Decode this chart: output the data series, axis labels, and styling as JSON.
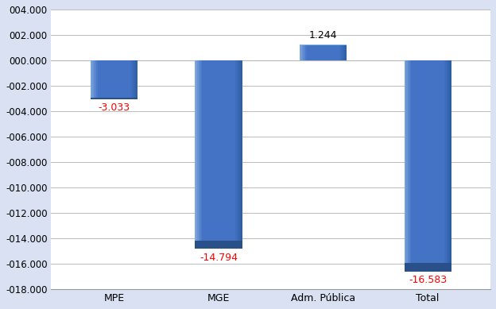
{
  "categories": [
    "MPE",
    "MGE",
    "Adm. Pública",
    "Total"
  ],
  "values": [
    -3033,
    -14794,
    1244,
    -16583
  ],
  "bar_color_main": "#4472C4",
  "bar_color_light": "#5B9BD5",
  "bar_color_dark": "#2E5FA3",
  "label_color_neg": "red",
  "label_color_pos": "black",
  "ylim": [
    -18000,
    4000
  ],
  "ytick_step": 2000,
  "background_color": "#D9E1F2",
  "plot_bg_color": "#FFFFFF",
  "grid_color": "#BBBBBB",
  "bar_width": 0.45,
  "value_labels": [
    "-3.033",
    "-14.794",
    "1.244",
    "-16.583"
  ],
  "value_label_colors": [
    "red",
    "red",
    "black",
    "red"
  ],
  "figsize": [
    6.24,
    3.89
  ],
  "dpi": 100
}
